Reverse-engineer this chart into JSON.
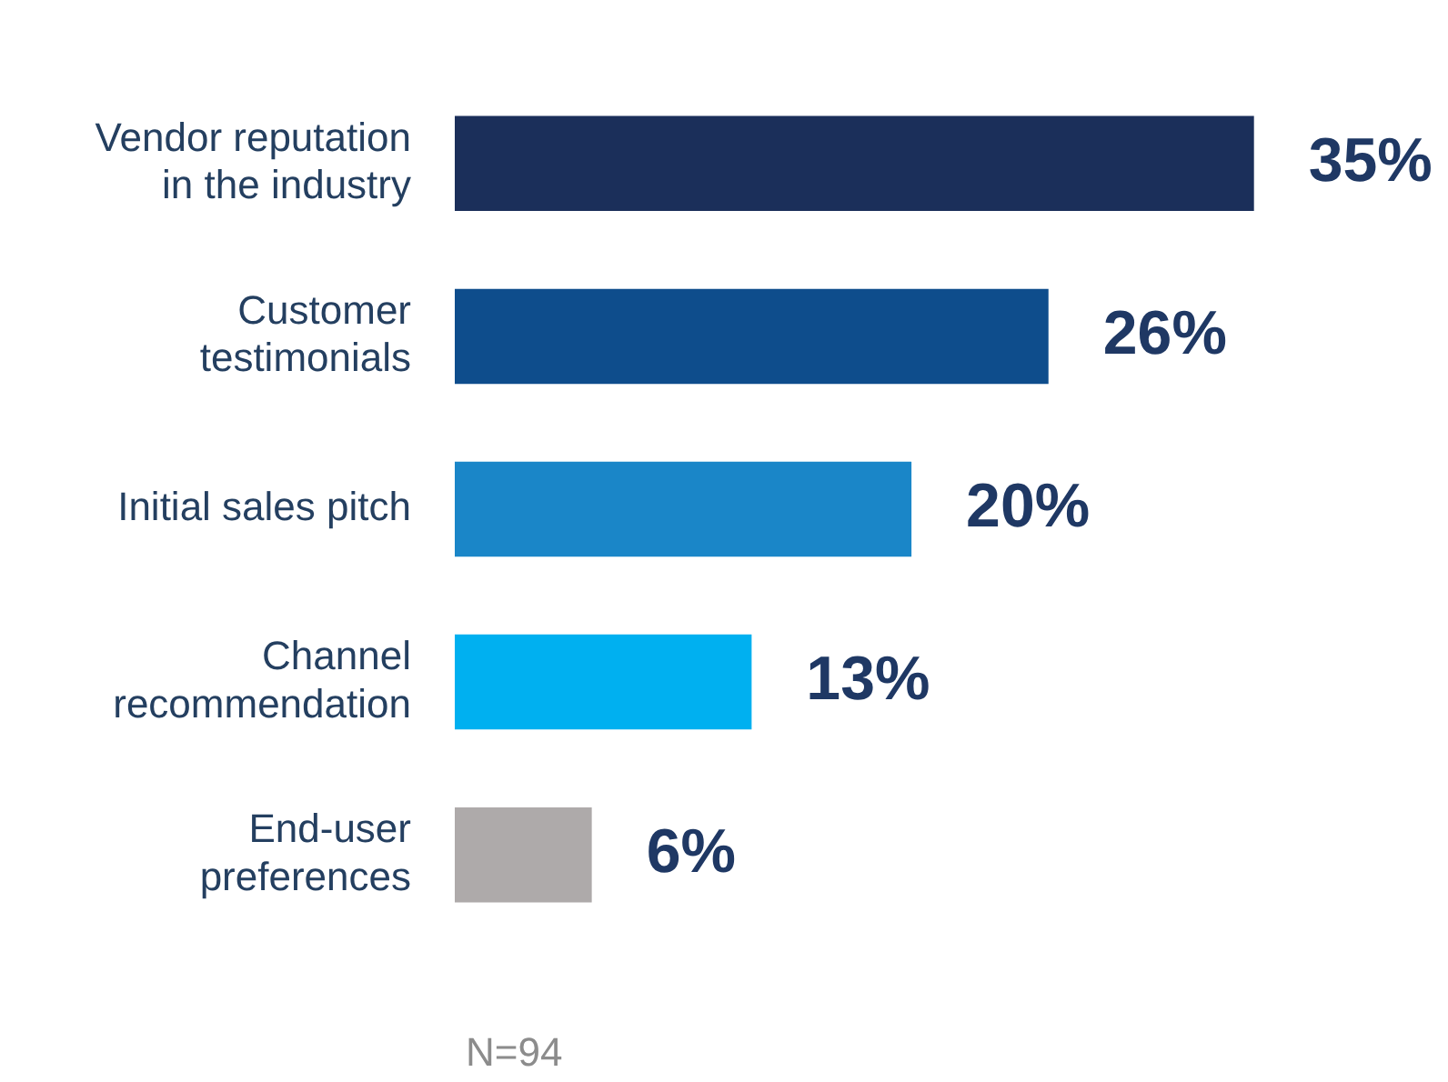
{
  "chart_data": {
    "type": "bar",
    "orientation": "horizontal",
    "categories": [
      "Vendor reputation in the industry",
      "Customer testimonials",
      "Initial sales pitch",
      "Channel recommendation",
      "End-user preferences"
    ],
    "values": [
      35,
      26,
      20,
      13,
      6
    ],
    "value_labels": [
      "35%",
      "26%",
      "20%",
      "13%",
      "6%"
    ],
    "colors": [
      "#1b2f5a",
      "#0e4d8c",
      "#1a86c8",
      "#00b0f0",
      "#aeaaaa"
    ],
    "legend": false,
    "annotations": [
      "N=94"
    ]
  }
}
